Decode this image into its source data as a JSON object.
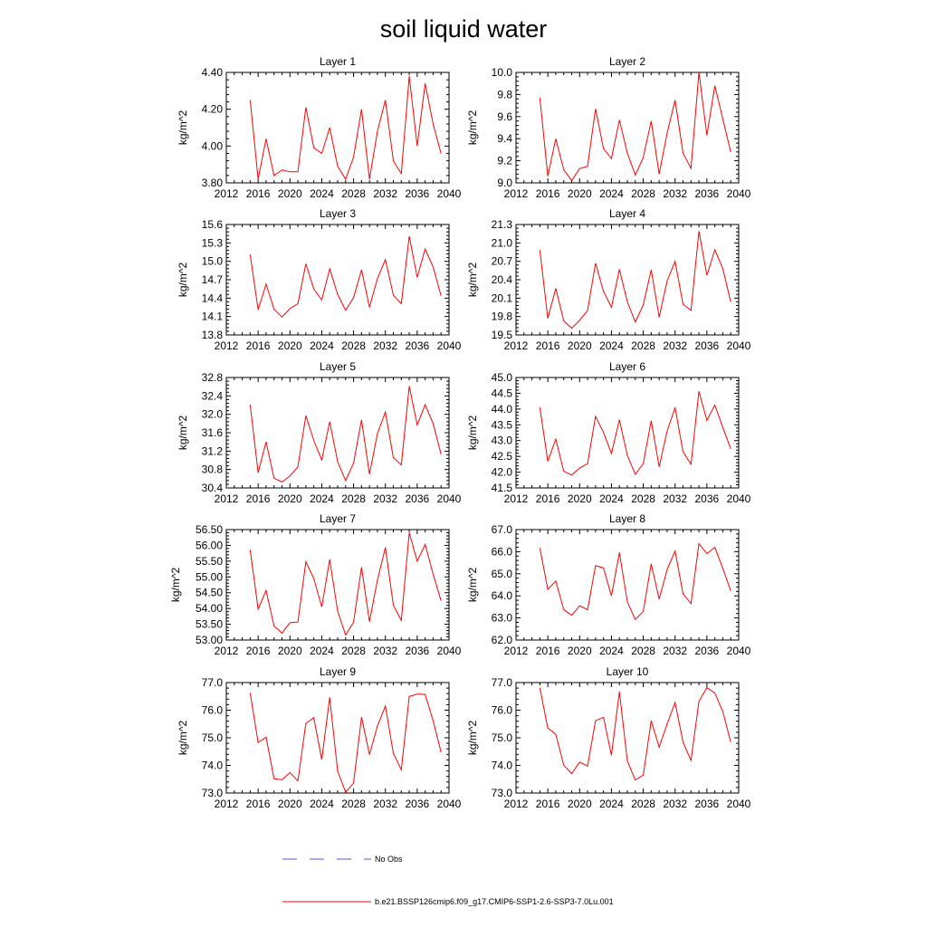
{
  "title": "soil liquid water",
  "colors": {
    "model": "#ff0000",
    "obs": "#5555cc",
    "axis": "#000000"
  },
  "legend": {
    "obs_label": "No Obs",
    "model_label": "b.e21.BSSP126cmip6.f09_g17.CMIP6-SSP1-2.6-SSP3-7.0Lu.001"
  },
  "chart_data": [
    {
      "type": "line",
      "title": "Layer 1",
      "ylabel": "kg/m^2",
      "xlim": [
        2012,
        2040
      ],
      "xticks": [
        "2012",
        "2016",
        "2020",
        "2024",
        "2028",
        "2032",
        "2036",
        "2040"
      ],
      "ylim": [
        3.8,
        4.4
      ],
      "yticks": [
        "3.80",
        "4.00",
        "4.20",
        "4.40"
      ],
      "x": [
        2015,
        2016,
        2017,
        2018,
        2019,
        2020,
        2021,
        2022,
        2023,
        2024,
        2025,
        2026,
        2027,
        2028,
        2029,
        2030,
        2031,
        2032,
        2033,
        2034,
        2035,
        2036,
        2037,
        2038,
        2039
      ],
      "series": [
        {
          "values": [
            4.25,
            3.82,
            4.04,
            3.84,
            3.87,
            3.86,
            3.86,
            4.21,
            3.99,
            3.96,
            4.1,
            3.89,
            3.82,
            3.94,
            4.2,
            3.82,
            4.08,
            4.25,
            3.92,
            3.85,
            4.38,
            4.0,
            4.34,
            4.12,
            3.96
          ]
        }
      ]
    },
    {
      "type": "line",
      "title": "Layer 2",
      "ylabel": "kg/m^2",
      "xlim": [
        2012,
        2040
      ],
      "xticks": [
        "2012",
        "2016",
        "2020",
        "2024",
        "2028",
        "2032",
        "2036",
        "2040"
      ],
      "ylim": [
        9.0,
        10.0
      ],
      "yticks": [
        "9.0",
        "9.2",
        "9.4",
        "9.6",
        "9.8",
        "10.0"
      ],
      "x": [
        2015,
        2016,
        2017,
        2018,
        2019,
        2020,
        2021,
        2022,
        2023,
        2024,
        2025,
        2026,
        2027,
        2028,
        2029,
        2030,
        2031,
        2032,
        2033,
        2034,
        2035,
        2036,
        2037,
        2038,
        2039
      ],
      "series": [
        {
          "values": [
            9.77,
            9.06,
            9.4,
            9.12,
            9.02,
            9.13,
            9.15,
            9.67,
            9.31,
            9.22,
            9.57,
            9.27,
            9.07,
            9.23,
            9.56,
            9.08,
            9.45,
            9.75,
            9.27,
            9.13,
            10.0,
            9.43,
            9.88,
            9.58,
            9.28
          ]
        }
      ]
    },
    {
      "type": "line",
      "title": "Layer 3",
      "ylabel": "kg/m^2",
      "xlim": [
        2012,
        2040
      ],
      "xticks": [
        "2012",
        "2016",
        "2020",
        "2024",
        "2028",
        "2032",
        "2036",
        "2040"
      ],
      "ylim": [
        13.8,
        15.6
      ],
      "yticks": [
        "13.8",
        "14.1",
        "14.4",
        "14.7",
        "15.0",
        "15.3",
        "15.6"
      ],
      "x": [
        2015,
        2016,
        2017,
        2018,
        2019,
        2020,
        2021,
        2022,
        2023,
        2024,
        2025,
        2026,
        2027,
        2028,
        2029,
        2030,
        2031,
        2032,
        2033,
        2034,
        2035,
        2036,
        2037,
        2038,
        2039
      ],
      "series": [
        {
          "values": [
            15.11,
            14.21,
            14.63,
            14.22,
            14.09,
            14.23,
            14.31,
            14.96,
            14.55,
            14.37,
            14.88,
            14.46,
            14.2,
            14.41,
            14.86,
            14.25,
            14.72,
            15.03,
            14.45,
            14.31,
            15.41,
            14.74,
            15.2,
            14.91,
            14.44
          ]
        }
      ]
    },
    {
      "type": "line",
      "title": "Layer 4",
      "ylabel": "kg/m^2",
      "xlim": [
        2012,
        2040
      ],
      "xticks": [
        "2012",
        "2016",
        "2020",
        "2024",
        "2028",
        "2032",
        "2036",
        "2040"
      ],
      "ylim": [
        19.5,
        21.3
      ],
      "yticks": [
        "19.5",
        "19.8",
        "20.1",
        "20.4",
        "20.7",
        "21.0",
        "21.3"
      ],
      "x": [
        2015,
        2016,
        2017,
        2018,
        2019,
        2020,
        2021,
        2022,
        2023,
        2024,
        2025,
        2026,
        2027,
        2028,
        2029,
        2030,
        2031,
        2032,
        2033,
        2034,
        2035,
        2036,
        2037,
        2038,
        2039
      ],
      "series": [
        {
          "values": [
            20.88,
            19.77,
            20.26,
            19.73,
            19.61,
            19.74,
            19.9,
            20.67,
            20.21,
            19.95,
            20.57,
            20.04,
            19.71,
            19.99,
            20.56,
            19.79,
            20.38,
            20.7,
            20.0,
            19.9,
            21.19,
            20.47,
            20.89,
            20.58,
            20.04
          ]
        }
      ]
    },
    {
      "type": "line",
      "title": "Layer 5",
      "ylabel": "kg/m^2",
      "xlim": [
        2012,
        2040
      ],
      "xticks": [
        "2012",
        "2016",
        "2020",
        "2024",
        "2028",
        "2032",
        "2036",
        "2040"
      ],
      "ylim": [
        30.4,
        32.8
      ],
      "yticks": [
        "30.4",
        "30.8",
        "31.2",
        "31.6",
        "32.0",
        "32.4",
        "32.8"
      ],
      "x": [
        2015,
        2016,
        2017,
        2018,
        2019,
        2020,
        2021,
        2022,
        2023,
        2024,
        2025,
        2026,
        2027,
        2028,
        2029,
        2030,
        2031,
        2032,
        2033,
        2034,
        2035,
        2036,
        2037,
        2038,
        2039
      ],
      "series": [
        {
          "values": [
            32.21,
            30.73,
            31.4,
            30.61,
            30.53,
            30.66,
            30.86,
            31.97,
            31.43,
            31.01,
            31.84,
            30.97,
            30.56,
            30.94,
            31.88,
            30.7,
            31.58,
            32.05,
            31.06,
            30.9,
            32.61,
            31.77,
            32.21,
            31.8,
            31.13
          ]
        }
      ]
    },
    {
      "type": "line",
      "title": "Layer 6",
      "ylabel": "kg/m^2",
      "xlim": [
        2012,
        2040
      ],
      "xticks": [
        "2012",
        "2016",
        "2020",
        "2024",
        "2028",
        "2032",
        "2036",
        "2040"
      ],
      "ylim": [
        41.5,
        45.0
      ],
      "yticks": [
        "41.5",
        "42.0",
        "42.5",
        "43.0",
        "43.5",
        "44.0",
        "44.5",
        "45.0"
      ],
      "x": [
        2015,
        2016,
        2017,
        2018,
        2019,
        2020,
        2021,
        2022,
        2023,
        2024,
        2025,
        2026,
        2027,
        2028,
        2029,
        2030,
        2031,
        2032,
        2033,
        2034,
        2035,
        2036,
        2037,
        2038,
        2039
      ],
      "series": [
        {
          "values": [
            44.05,
            42.34,
            43.05,
            42.03,
            41.91,
            42.13,
            42.27,
            43.77,
            43.26,
            42.59,
            43.66,
            42.53,
            41.93,
            42.27,
            43.63,
            42.17,
            43.3,
            44.05,
            42.65,
            42.25,
            44.56,
            43.64,
            44.13,
            43.42,
            42.74
          ]
        }
      ]
    },
    {
      "type": "line",
      "title": "Layer 7",
      "ylabel": "kg/m^2",
      "xlim": [
        2012,
        2040
      ],
      "xticks": [
        "2012",
        "2016",
        "2020",
        "2024",
        "2028",
        "2032",
        "2036",
        "2040"
      ],
      "ylim": [
        53.0,
        56.5
      ],
      "yticks": [
        "53.00",
        "53.50",
        "54.00",
        "54.50",
        "55.00",
        "55.50",
        "56.00",
        "56.50"
      ],
      "x": [
        2015,
        2016,
        2017,
        2018,
        2019,
        2020,
        2021,
        2022,
        2023,
        2024,
        2025,
        2026,
        2027,
        2028,
        2029,
        2030,
        2031,
        2032,
        2033,
        2034,
        2035,
        2036,
        2037,
        2038,
        2039
      ],
      "series": [
        {
          "values": [
            55.86,
            53.98,
            54.57,
            53.45,
            53.22,
            53.55,
            53.57,
            55.48,
            54.95,
            54.05,
            55.55,
            53.91,
            53.16,
            53.56,
            55.31,
            53.58,
            54.9,
            55.93,
            54.11,
            53.62,
            56.4,
            55.5,
            56.03,
            55.09,
            54.25
          ]
        }
      ]
    },
    {
      "type": "line",
      "title": "Layer 8",
      "ylabel": "kg/m^2",
      "xlim": [
        2012,
        2040
      ],
      "xticks": [
        "2012",
        "2016",
        "2020",
        "2024",
        "2028",
        "2032",
        "2036",
        "2040"
      ],
      "ylim": [
        62.0,
        67.0
      ],
      "yticks": [
        "62.0",
        "63.0",
        "64.0",
        "65.0",
        "66.0",
        "67.0"
      ],
      "x": [
        2015,
        2016,
        2017,
        2018,
        2019,
        2020,
        2021,
        2022,
        2023,
        2024,
        2025,
        2026,
        2027,
        2028,
        2029,
        2030,
        2031,
        2032,
        2033,
        2034,
        2035,
        2036,
        2037,
        2038,
        2039
      ],
      "series": [
        {
          "values": [
            66.17,
            64.29,
            64.67,
            63.38,
            63.12,
            63.55,
            63.37,
            65.37,
            65.26,
            64.0,
            65.96,
            63.73,
            62.93,
            63.29,
            65.45,
            63.85,
            65.19,
            66.03,
            64.1,
            63.65,
            66.36,
            65.91,
            66.2,
            65.25,
            64.23
          ]
        }
      ]
    },
    {
      "type": "line",
      "title": "Layer 9",
      "ylabel": "kg/m^2",
      "xlim": [
        2012,
        2040
      ],
      "xticks": [
        "2012",
        "2016",
        "2020",
        "2024",
        "2028",
        "2032",
        "2036",
        "2040"
      ],
      "ylim": [
        73.0,
        77.0
      ],
      "yticks": [
        "73.0",
        "74.0",
        "75.0",
        "76.0",
        "77.0"
      ],
      "x": [
        2015,
        2016,
        2017,
        2018,
        2019,
        2020,
        2021,
        2022,
        2023,
        2024,
        2025,
        2026,
        2027,
        2028,
        2029,
        2030,
        2031,
        2032,
        2033,
        2034,
        2035,
        2036,
        2037,
        2038,
        2039
      ],
      "series": [
        {
          "values": [
            76.62,
            74.83,
            75.02,
            73.52,
            73.48,
            73.74,
            73.44,
            75.52,
            75.73,
            74.21,
            76.46,
            73.79,
            73.03,
            73.36,
            75.75,
            74.39,
            75.43,
            76.15,
            74.44,
            73.84,
            76.5,
            76.58,
            76.57,
            75.62,
            74.48
          ]
        }
      ]
    },
    {
      "type": "line",
      "title": "Layer 10",
      "ylabel": "kg/m^2",
      "xlim": [
        2012,
        2040
      ],
      "xticks": [
        "2012",
        "2016",
        "2020",
        "2024",
        "2028",
        "2032",
        "2036",
        "2040"
      ],
      "ylim": [
        73.0,
        77.0
      ],
      "yticks": [
        "73.0",
        "74.0",
        "75.0",
        "76.0",
        "77.0"
      ],
      "x": [
        2015,
        2016,
        2017,
        2018,
        2019,
        2020,
        2021,
        2022,
        2023,
        2024,
        2025,
        2026,
        2027,
        2028,
        2029,
        2030,
        2031,
        2032,
        2033,
        2034,
        2035,
        2036,
        2037,
        2038,
        2039
      ],
      "series": [
        {
          "values": [
            76.8,
            75.35,
            75.13,
            74.01,
            73.7,
            74.12,
            73.98,
            75.62,
            75.74,
            74.37,
            76.67,
            74.16,
            73.47,
            73.65,
            75.62,
            74.66,
            75.5,
            76.28,
            74.85,
            74.18,
            76.32,
            76.82,
            76.62,
            75.95,
            74.85
          ]
        }
      ]
    }
  ]
}
